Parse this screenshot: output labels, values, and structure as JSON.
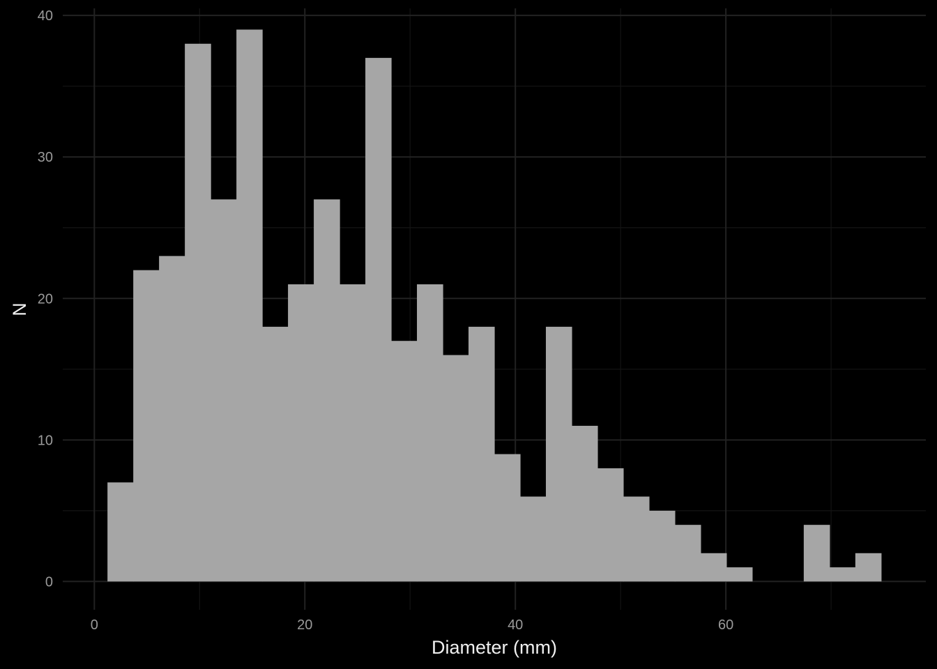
{
  "chart_data": {
    "type": "bar",
    "subtype": "histogram",
    "xlabel": "Diameter (mm)",
    "ylabel": "N",
    "xlim": [
      -3,
      79
    ],
    "ylim": [
      -2,
      40.5
    ],
    "x_ticks": [
      0,
      20,
      40,
      60
    ],
    "y_ticks": [
      0,
      10,
      20,
      30,
      40
    ],
    "grid": true,
    "bin_width": 2.45,
    "bins": [
      {
        "x0": 1.25,
        "x1": 3.7,
        "count": 7
      },
      {
        "x0": 3.7,
        "x1": 6.15,
        "count": 22
      },
      {
        "x0": 6.15,
        "x1": 8.6,
        "count": 23
      },
      {
        "x0": 8.6,
        "x1": 11.05,
        "count": 38
      },
      {
        "x0": 11.05,
        "x1": 13.5,
        "count": 27
      },
      {
        "x0": 13.5,
        "x1": 15.95,
        "count": 39
      },
      {
        "x0": 15.95,
        "x1": 18.4,
        "count": 18
      },
      {
        "x0": 18.4,
        "x1": 20.85,
        "count": 21
      },
      {
        "x0": 20.85,
        "x1": 23.3,
        "count": 27
      },
      {
        "x0": 23.3,
        "x1": 25.75,
        "count": 21
      },
      {
        "x0": 25.75,
        "x1": 28.2,
        "count": 37
      },
      {
        "x0": 28.2,
        "x1": 30.65,
        "count": 17
      },
      {
        "x0": 30.65,
        "x1": 33.1,
        "count": 21
      },
      {
        "x0": 33.1,
        "x1": 35.55,
        "count": 16
      },
      {
        "x0": 35.55,
        "x1": 38.0,
        "count": 18
      },
      {
        "x0": 38.0,
        "x1": 40.45,
        "count": 9
      },
      {
        "x0": 40.45,
        "x1": 42.9,
        "count": 6
      },
      {
        "x0": 42.9,
        "x1": 45.35,
        "count": 18
      },
      {
        "x0": 45.35,
        "x1": 47.8,
        "count": 11
      },
      {
        "x0": 47.8,
        "x1": 50.25,
        "count": 8
      },
      {
        "x0": 50.25,
        "x1": 52.7,
        "count": 6
      },
      {
        "x0": 52.7,
        "x1": 55.15,
        "count": 5
      },
      {
        "x0": 55.15,
        "x1": 57.6,
        "count": 4
      },
      {
        "x0": 57.6,
        "x1": 60.05,
        "count": 2
      },
      {
        "x0": 60.05,
        "x1": 62.5,
        "count": 1
      },
      {
        "x0": 62.5,
        "x1": 64.95,
        "count": 0
      },
      {
        "x0": 64.95,
        "x1": 67.4,
        "count": 0
      },
      {
        "x0": 67.4,
        "x1": 69.85,
        "count": 4
      },
      {
        "x0": 69.85,
        "x1": 72.3,
        "count": 1
      },
      {
        "x0": 72.3,
        "x1": 74.75,
        "count": 2
      }
    ],
    "colors": {
      "background": "#000000",
      "bar_fill": "#a6a6a6",
      "grid_major": "#222222",
      "grid_minor": "#141414",
      "tick_text": "#9a9a9a",
      "axis_title": "#f0f0f0"
    }
  }
}
